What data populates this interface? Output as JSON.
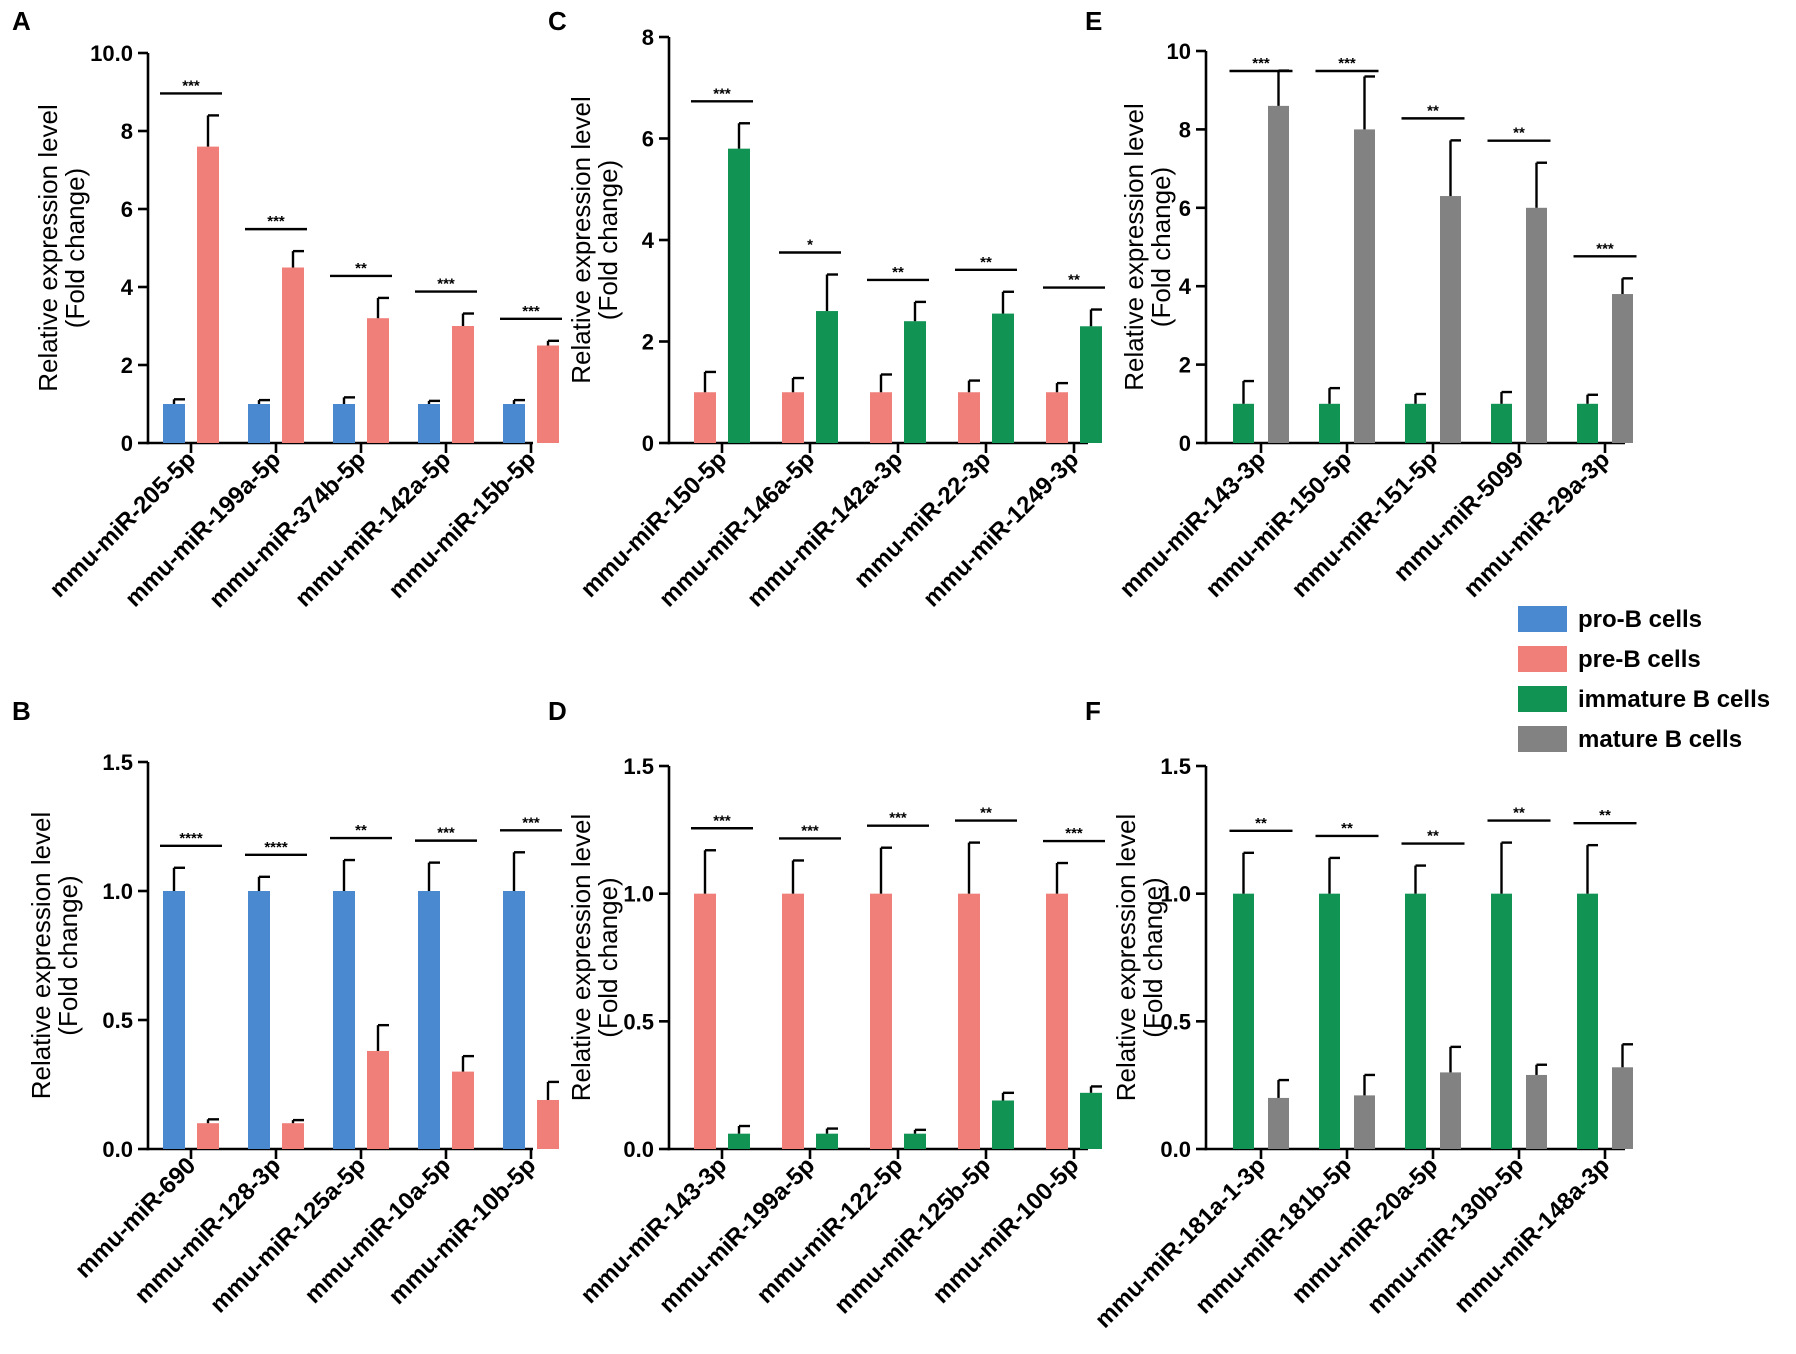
{
  "colors": {
    "pro-B cells": "#4a89cf",
    "pre-B cells": "#f07f79",
    "immature B cells": "#119354",
    "mature B cells": "#828282"
  },
  "legend": [
    "pro-B cells",
    "pre-B cells",
    "immature B cells",
    "mature B cells"
  ],
  "chart_data": [
    {
      "panel": "A",
      "type": "bar",
      "ylabel": [
        "Relative expression level",
        "(Fold change)"
      ],
      "ylim": [
        0,
        10
      ],
      "yticks": [
        "0",
        "2",
        "4",
        "6",
        "8",
        "10.0"
      ],
      "yticks_values": [
        0,
        2,
        4,
        6,
        8,
        10
      ],
      "categories": [
        "mmu-miR-205-5p",
        "mmu-miR-199a-5p",
        "mmu-miR-374b-5p",
        "mmu-miR-142a-5p",
        "mmu-miR-15b-5p"
      ],
      "series": [
        {
          "name": "pro-B cells",
          "values": [
            1.0,
            1.0,
            1.0,
            1.0,
            1.0
          ],
          "errors": [
            0.12,
            0.1,
            0.17,
            0.08,
            0.1
          ]
        },
        {
          "name": "pre-B cells",
          "values": [
            7.6,
            4.5,
            3.2,
            3.0,
            2.5
          ],
          "errors": [
            0.8,
            0.42,
            0.52,
            0.32,
            0.12
          ]
        }
      ],
      "significance": [
        "***",
        "***",
        "**",
        "***",
        "***"
      ]
    },
    {
      "panel": "B",
      "type": "bar",
      "ylabel": [
        "Relative expression level",
        "(Fold change)"
      ],
      "ylim": [
        0,
        1.5
      ],
      "yticks": [
        "0.0",
        "0.5",
        "1.0",
        "1.5"
      ],
      "yticks_values": [
        0,
        0.5,
        1.0,
        1.5
      ],
      "categories": [
        "mmu-miR-690",
        "mmu-miR-128-3p",
        "mmu-miR-125a-5p",
        "mmu-miR-10a-5p",
        "mmu-miR-10b-5p"
      ],
      "series": [
        {
          "name": "pro-B cells",
          "values": [
            1.0,
            1.0,
            1.0,
            1.0,
            1.0
          ],
          "errors": [
            0.09,
            0.055,
            0.12,
            0.11,
            0.15
          ]
        },
        {
          "name": "pre-B cells",
          "values": [
            0.1,
            0.1,
            0.38,
            0.3,
            0.19
          ],
          "errors": [
            0.015,
            0.012,
            0.1,
            0.06,
            0.07
          ]
        }
      ],
      "significance": [
        "****",
        "****",
        "**",
        "***",
        "***"
      ]
    },
    {
      "panel": "C",
      "type": "bar",
      "ylabel": [
        "Relative expression level",
        "(Fold change)"
      ],
      "ylim": [
        0,
        8
      ],
      "yticks": [
        "0",
        "2",
        "4",
        "6",
        "8"
      ],
      "yticks_values": [
        0,
        2,
        4,
        6,
        8
      ],
      "categories": [
        "mmu-miR-150-5p",
        "mmu-miR-146a-5p",
        "mmu-miR-142a-3p",
        "mmu-miR-22-3p",
        "mmu-miR-1249-3p"
      ],
      "series": [
        {
          "name": "pre-B cells",
          "values": [
            1.0,
            1.0,
            1.0,
            1.0,
            1.0
          ],
          "errors": [
            0.4,
            0.28,
            0.35,
            0.23,
            0.18
          ]
        },
        {
          "name": "immature B cells",
          "values": [
            5.8,
            2.6,
            2.4,
            2.55,
            2.3
          ],
          "errors": [
            0.5,
            0.72,
            0.38,
            0.43,
            0.33
          ]
        }
      ],
      "significance": [
        "***",
        "*",
        "**",
        "**",
        "**"
      ]
    },
    {
      "panel": "D",
      "type": "bar",
      "ylabel": [
        "Relative expression level",
        "(Fold change)"
      ],
      "ylim": [
        0,
        1.5
      ],
      "yticks": [
        "0.0",
        "0.5",
        "1.0",
        "1.5"
      ],
      "yticks_values": [
        0,
        0.5,
        1.0,
        1.5
      ],
      "categories": [
        "mmu-miR-143-3p",
        "mmu-miR-199a-5p",
        "mmu-miR-122-5p",
        "mmu-miR-125b-5p",
        "mmu-miR-100-5p"
      ],
      "series": [
        {
          "name": "pre-B cells",
          "values": [
            1.0,
            1.0,
            1.0,
            1.0,
            1.0
          ],
          "errors": [
            0.17,
            0.13,
            0.18,
            0.2,
            0.12
          ]
        },
        {
          "name": "immature B cells",
          "values": [
            0.06,
            0.06,
            0.06,
            0.19,
            0.22
          ],
          "errors": [
            0.03,
            0.02,
            0.015,
            0.03,
            0.025
          ]
        }
      ],
      "significance": [
        "***",
        "***",
        "***",
        "**",
        "***"
      ]
    },
    {
      "panel": "E",
      "type": "bar",
      "ylabel": [
        "Relative expression level",
        "(Fold change)"
      ],
      "ylim": [
        0,
        10
      ],
      "yticks": [
        "0",
        "2",
        "4",
        "6",
        "8",
        "10"
      ],
      "yticks_values": [
        0,
        2,
        4,
        6,
        8,
        10
      ],
      "categories": [
        "mmu-miR-143-3p",
        "mmu-miR-150-5p",
        "mmu-miR-151-5p",
        "mmu-miR-5099",
        "mmu-miR-29a-3p"
      ],
      "series": [
        {
          "name": "immature B cells",
          "values": [
            1.0,
            1.0,
            1.0,
            1.0,
            1.0
          ],
          "errors": [
            0.58,
            0.4,
            0.25,
            0.3,
            0.23
          ]
        },
        {
          "name": "mature B cells",
          "values": [
            8.6,
            8.0,
            6.3,
            6.0,
            3.8
          ],
          "errors": [
            0.9,
            1.35,
            1.42,
            1.15,
            0.4
          ]
        }
      ],
      "significance": [
        "***",
        "***",
        "**",
        "**",
        "***"
      ]
    },
    {
      "panel": "F",
      "type": "bar",
      "ylabel": [
        "Relative expression level",
        "(Fold change)"
      ],
      "ylim": [
        0,
        1.5
      ],
      "yticks": [
        "0.0",
        "0.5",
        "1.0",
        "1.5"
      ],
      "yticks_values": [
        0,
        0.5,
        1.0,
        1.5
      ],
      "categories": [
        "mmu-miR-181a-1-3p",
        "mmu-miR-181b-5p",
        "mmu-miR-20a-5p",
        "mmu-miR-130b-5p",
        "mmu-miR-148a-3p"
      ],
      "series": [
        {
          "name": "immature B cells",
          "values": [
            1.0,
            1.0,
            1.0,
            1.0,
            1.0
          ],
          "errors": [
            0.16,
            0.14,
            0.11,
            0.2,
            0.19
          ]
        },
        {
          "name": "mature B cells",
          "values": [
            0.2,
            0.21,
            0.3,
            0.29,
            0.32
          ],
          "errors": [
            0.07,
            0.08,
            0.1,
            0.04,
            0.09
          ]
        }
      ],
      "significance": [
        "**",
        "**",
        "**",
        "**",
        "**"
      ]
    }
  ]
}
